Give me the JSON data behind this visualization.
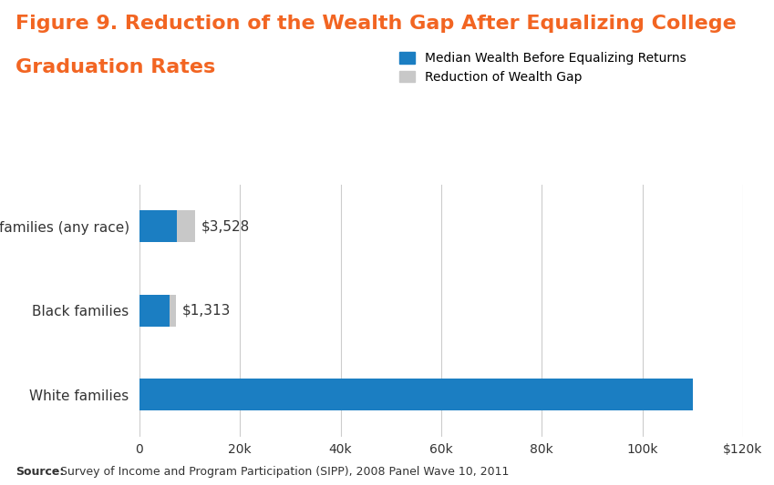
{
  "title_line1": "Figure 9. Reduction of the Wealth Gap After Equalizing College",
  "title_line2": "Graduation Rates",
  "title_color": "#F26522",
  "categories": [
    "White families",
    "Black families",
    "Latino families (any race)"
  ],
  "median_wealth": [
    110000,
    6000,
    7500
  ],
  "reduction": [
    0,
    1313,
    3528
  ],
  "reduction_labels": [
    "",
    "$1,313",
    "$3,528"
  ],
  "bar_color_blue": "#1B7EC2",
  "bar_color_gray": "#C8C8C8",
  "legend_label_blue": "Median Wealth Before Equalizing Returns",
  "legend_label_gray": "Reduction of Wealth Gap",
  "xlim": [
    0,
    120000
  ],
  "xticks": [
    0,
    20000,
    40000,
    60000,
    80000,
    100000,
    120000
  ],
  "xtick_labels": [
    "0",
    "20k",
    "40k",
    "60k",
    "80k",
    "100k",
    "$120k"
  ],
  "source_bold": "Source:",
  "source_rest": " Survey of Income and Program Participation (SIPP), 2008 Panel Wave 10, 2011",
  "background_color": "#FFFFFF",
  "grid_color": "#CCCCCC",
  "bar_height": 0.38,
  "font_size_title": 16,
  "font_size_labels": 11,
  "font_size_ticks": 10,
  "font_size_source": 9,
  "font_size_legend": 10
}
